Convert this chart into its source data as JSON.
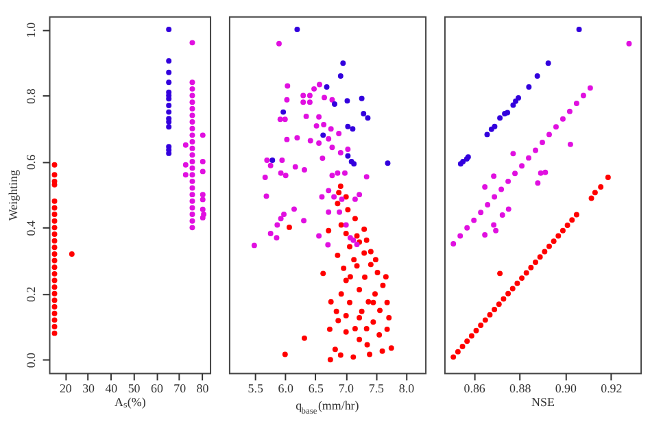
{
  "chart_data": [
    {
      "type": "scatter",
      "xlabel": "Aₛ(%)",
      "ylabel": "Weighting",
      "xlim": [
        13,
        83.5
      ],
      "ylim": [
        -0.04,
        1.04
      ],
      "xticks": [
        20,
        30,
        40,
        50,
        60,
        70,
        80
      ],
      "yticks": [
        {
          "value": 0,
          "label": "0.0"
        },
        0.2,
        0.4,
        0.6,
        0.8,
        {
          "value": 1,
          "label": "1.0"
        }
      ],
      "grid": false,
      "legend": false,
      "marker": "circle",
      "series": [
        {
          "color": "#ff0000",
          "x": [
            15.4,
            15.4,
            15.4,
            15.4,
            15.4,
            15.4,
            15.4,
            15.4,
            15.4,
            15.4,
            15.4,
            15.4,
            15.4,
            15.4,
            15.4,
            15.4,
            15.4,
            15.4,
            15.4,
            15.4,
            15.4,
            15.4,
            15.4,
            15.4,
            15.4,
            23
          ],
          "values": [
            0.08,
            0.1,
            0.12,
            0.14,
            0.16,
            0.18,
            0.2,
            0.22,
            0.24,
            0.26,
            0.28,
            0.3,
            0.32,
            0.34,
            0.36,
            0.38,
            0.4,
            0.42,
            0.44,
            0.46,
            0.48,
            0.53,
            0.54,
            0.56,
            0.59,
            0.32
          ]
        },
        {
          "color": "#e010e0",
          "x": [
            75.8,
            75.8,
            75.8,
            75.8,
            75.8,
            75.8,
            75.8,
            75.8,
            75.8,
            75.8,
            75.8,
            75.8,
            75.8,
            75.8,
            75.8,
            75.8,
            75.8,
            75.8,
            75.8,
            75.8,
            75.8,
            75.8,
            75.8,
            75.8,
            72.9,
            72.9,
            72.9,
            80.4,
            80.4,
            80.4,
            80.4,
            80.4,
            80.4,
            80.4,
            80.8
          ],
          "values": [
            0.4,
            0.42,
            0.44,
            0.46,
            0.48,
            0.5,
            0.52,
            0.54,
            0.56,
            0.58,
            0.6,
            0.62,
            0.64,
            0.66,
            0.68,
            0.7,
            0.72,
            0.74,
            0.76,
            0.78,
            0.8,
            0.82,
            0.84,
            0.96,
            0.65,
            0.59,
            0.56,
            0.68,
            0.6,
            0.57,
            0.5,
            0.485,
            0.455,
            0.43,
            0.44
          ]
        },
        {
          "color": "#3300dd",
          "x": [
            65.5,
            65.5,
            65.5,
            65.5,
            65.5,
            65.5,
            65.5,
            65.5,
            65.5,
            65.5,
            65.5,
            65.5,
            65.5,
            65.5,
            65.5
          ],
          "values": [
            1.0,
            0.905,
            0.87,
            0.84,
            0.81,
            0.8,
            0.79,
            0.77,
            0.75,
            0.73,
            0.72,
            0.705,
            0.645,
            0.635,
            0.625
          ]
        }
      ]
    },
    {
      "type": "scatter",
      "xlabel": "q$_{base}$(mm/hr)",
      "xlim": [
        5.07,
        8.32
      ],
      "ylim": [
        -0.04,
        1.04
      ],
      "xticks": [
        5.5,
        {
          "value": 6,
          "label": "6.0"
        },
        6.5,
        {
          "value": 7,
          "label": "7.0"
        },
        7.5,
        {
          "value": 8,
          "label": "8.0"
        }
      ],
      "tick_labels": "x",
      "grid": false,
      "legend": false,
      "marker": "circle",
      "series": [
        {
          "color": "#ff0000",
          "x": [
            6.0,
            6.32,
            6.75,
            6.92,
            7.13,
            7.4,
            7.76,
            7.61,
            6.83,
            7.01,
            6.74,
            7.23,
            7.36,
            7.56,
            7.69,
            7.16,
            7.46,
            6.88,
            7.72,
            7.01,
            7.27,
            7.57,
            6.76,
            7.07,
            7.38,
            7.69,
            6.93,
            7.23,
            7.49,
            7.62,
            7.01,
            7.32,
            6.97,
            7.19,
            7.42,
            7.67,
            6.63,
            6.87,
            7.14,
            7.31,
            7.42,
            7.07,
            7.23,
            7.01,
            7.19,
            7.31,
            6.93,
            7.16,
            6.72,
            6.07,
            7.04,
            6.87,
            6.89,
            7.01,
            6.92,
            7.35,
            7.5,
            7.53,
            7.08,
            6.85,
            7.35,
            7.23,
            7.46
          ],
          "values": [
            0.016,
            0.065,
            0.0,
            0.014,
            0.008,
            0.016,
            0.035,
            0.026,
            0.031,
            0.084,
            0.092,
            0.061,
            0.045,
            0.075,
            0.092,
            0.094,
            0.114,
            0.118,
            0.127,
            0.133,
            0.146,
            0.149,
            0.175,
            0.173,
            0.175,
            0.173,
            0.199,
            0.212,
            0.199,
            0.225,
            0.24,
            0.25,
            0.277,
            0.284,
            0.288,
            0.251,
            0.261,
            0.316,
            0.303,
            0.323,
            0.327,
            0.342,
            0.356,
            0.382,
            0.375,
            0.395,
            0.408,
            0.427,
            0.391,
            0.401,
            0.454,
            0.473,
            0.506,
            0.493,
            0.525,
            0.362,
            0.303,
            0.264,
            0.251,
            0.146,
            0.094,
            0.127,
            0.173
          ]
        },
        {
          "color": "#e010e0",
          "x": [
            5.9,
            6.04,
            6.57,
            6.65,
            6.3,
            6.41,
            6.3,
            6.41,
            6.03,
            6.48,
            6.78,
            6.0,
            5.92,
            6.35,
            6.56,
            6.64,
            6.52,
            6.76,
            6.03,
            6.2,
            6.42,
            6.56,
            6.72,
            6.89,
            6.78,
            6.62,
            6.92,
            7.04,
            5.7,
            5.76,
            5.95,
            6.17,
            6.32,
            5.93,
            6.01,
            5.67,
            5.69,
            6.78,
            6.87,
            6.99,
            6.72,
            6.61,
            6.81,
            6.94,
            7.16,
            7.35,
            7.23,
            5.98,
            5.93,
            6.15,
            5.87,
            6.31,
            5.76,
            5.86,
            5.49,
            6.56,
            6.72,
            6.9,
            7.01,
            7.08,
            7.19,
            6.71,
            7.13
          ],
          "values": [
            0.957,
            0.829,
            0.833,
            0.794,
            0.8,
            0.8,
            0.78,
            0.78,
            0.787,
            0.82,
            0.787,
            0.728,
            0.728,
            0.737,
            0.735,
            0.712,
            0.708,
            0.699,
            0.667,
            0.672,
            0.663,
            0.656,
            0.669,
            0.685,
            0.643,
            0.61,
            0.627,
            0.637,
            0.604,
            0.588,
            0.604,
            0.584,
            0.575,
            0.565,
            0.558,
            0.552,
            0.495,
            0.558,
            0.565,
            0.565,
            0.512,
            0.493,
            0.493,
            0.486,
            0.486,
            0.554,
            0.5,
            0.44,
            0.427,
            0.456,
            0.408,
            0.421,
            0.382,
            0.369,
            0.346,
            0.375,
            0.447,
            0.447,
            0.408,
            0.369,
            0.349,
            0.348,
            0.362
          ]
        },
        {
          "color": "#3300dd",
          "x": [
            6.2,
            6.96,
            6.92,
            6.69,
            6.82,
            7.03,
            7.27,
            7.3,
            7.37,
            5.97,
            7.04,
            7.12,
            6.63,
            7.04,
            7.1,
            7.14,
            5.79,
            7.7
          ],
          "values": [
            1.0,
            0.898,
            0.859,
            0.826,
            0.774,
            0.784,
            0.791,
            0.745,
            0.732,
            0.75,
            0.706,
            0.699,
            0.68,
            0.617,
            0.6,
            0.593,
            0.604,
            0.595
          ]
        }
      ]
    },
    {
      "type": "scatter",
      "xlabel": "NSE",
      "xlim": [
        0.847,
        0.933
      ],
      "ylim": [
        -0.04,
        1.04
      ],
      "xticks": [
        0.86,
        0.88,
        {
          "value": 0.9,
          "label": "0.90"
        },
        0.92
      ],
      "tick_labels": "x",
      "grid": false,
      "legend": false,
      "marker": "circle",
      "series": [
        {
          "color": "#ff0000",
          "x": [
            0.851,
            0.853,
            0.855,
            0.857,
            0.859,
            0.861,
            0.863,
            0.865,
            0.867,
            0.869,
            0.871,
            0.873,
            0.875,
            0.877,
            0.879,
            0.881,
            0.883,
            0.885,
            0.887,
            0.889,
            0.891,
            0.893,
            0.895,
            0.897,
            0.899,
            0.901,
            0.903,
            0.905,
            0.9115,
            0.9131,
            0.9156,
            0.9188,
            0.8714
          ],
          "values": [
            0.008,
            0.024,
            0.04,
            0.056,
            0.072,
            0.088,
            0.104,
            0.12,
            0.136,
            0.152,
            0.168,
            0.184,
            0.2,
            0.215,
            0.231,
            0.247,
            0.263,
            0.279,
            0.295,
            0.311,
            0.327,
            0.343,
            0.359,
            0.375,
            0.391,
            0.407,
            0.423,
            0.439,
            0.489,
            0.506,
            0.523,
            0.552,
            0.261
          ]
        },
        {
          "color": "#e010e0",
          "x": [
            0.851,
            0.854,
            0.857,
            0.86,
            0.863,
            0.866,
            0.869,
            0.872,
            0.875,
            0.878,
            0.881,
            0.884,
            0.887,
            0.89,
            0.893,
            0.896,
            0.899,
            0.902,
            0.905,
            0.908,
            0.911,
            0.928,
            0.8772,
            0.8687,
            0.8648,
            0.888,
            0.8893,
            0.8913,
            0.9023,
            0.8752,
            0.8725,
            0.8687,
            0.8696,
            0.8648
          ],
          "values": [
            0.351,
            0.375,
            0.399,
            0.422,
            0.446,
            0.469,
            0.493,
            0.516,
            0.54,
            0.564,
            0.587,
            0.611,
            0.634,
            0.658,
            0.682,
            0.705,
            0.729,
            0.752,
            0.776,
            0.8,
            0.823,
            0.957,
            0.624,
            0.556,
            0.523,
            0.535,
            0.565,
            0.567,
            0.652,
            0.456,
            0.438,
            0.408,
            0.391,
            0.378
          ]
        },
        {
          "color": "#3300dd",
          "x": [
            0.8542,
            0.8552,
            0.8569,
            0.8575,
            0.8658,
            0.8677,
            0.8691,
            0.8714,
            0.8735,
            0.8747,
            0.8772,
            0.8783,
            0.8795,
            0.8841,
            0.8878,
            0.8926,
            0.9061
          ],
          "values": [
            0.593,
            0.6,
            0.608,
            0.614,
            0.682,
            0.698,
            0.706,
            0.732,
            0.745,
            0.748,
            0.771,
            0.783,
            0.793,
            0.826,
            0.859,
            0.898,
            1.0
          ]
        }
      ]
    }
  ]
}
